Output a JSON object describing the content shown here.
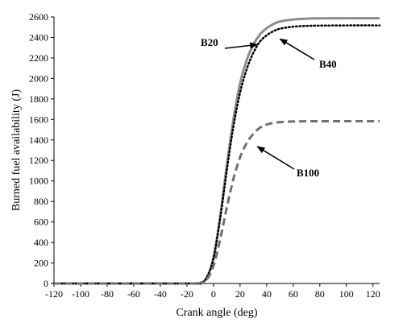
{
  "chart_data": {
    "type": "line",
    "title": "",
    "xlabel": "Crank angle (deg)",
    "ylabel": "Burned fuel availability (J)",
    "xlim": [
      -120,
      125
    ],
    "ylim": [
      0,
      2600
    ],
    "xticks": [
      -120,
      -100,
      -80,
      -60,
      -40,
      -20,
      0,
      20,
      40,
      60,
      80,
      100,
      120
    ],
    "yticks": [
      0,
      200,
      400,
      600,
      800,
      1000,
      1200,
      1400,
      1600,
      1800,
      2000,
      2200,
      2400,
      2600
    ],
    "grid": false,
    "legend": "none",
    "series": [
      {
        "name": "B20",
        "style": "solid",
        "color": "#8c8c8c",
        "x": [
          -120,
          -20,
          -10,
          -5,
          0,
          5,
          10,
          15,
          20,
          25,
          30,
          35,
          40,
          45,
          50,
          60,
          70,
          80,
          100,
          125
        ],
        "y": [
          0,
          0,
          5,
          60,
          250,
          650,
          1150,
          1600,
          1950,
          2180,
          2330,
          2430,
          2490,
          2530,
          2555,
          2575,
          2583,
          2586,
          2587,
          2587
        ]
      },
      {
        "name": "B40",
        "style": "dotted",
        "color": "#000000",
        "x": [
          -120,
          -20,
          -10,
          -5,
          0,
          5,
          10,
          15,
          20,
          25,
          30,
          35,
          40,
          45,
          50,
          60,
          70,
          80,
          100,
          125
        ],
        "y": [
          0,
          0,
          5,
          60,
          245,
          630,
          1100,
          1530,
          1860,
          2090,
          2250,
          2360,
          2420,
          2460,
          2485,
          2505,
          2512,
          2515,
          2517,
          2517
        ]
      },
      {
        "name": "B100",
        "style": "dashed",
        "color": "#707070",
        "x": [
          -120,
          -20,
          -10,
          -5,
          0,
          5,
          10,
          15,
          20,
          25,
          30,
          35,
          40,
          45,
          50,
          60,
          70,
          80,
          100,
          125
        ],
        "y": [
          0,
          0,
          3,
          40,
          170,
          430,
          740,
          1020,
          1230,
          1370,
          1460,
          1520,
          1550,
          1565,
          1574,
          1580,
          1582,
          1583,
          1583,
          1583
        ]
      }
    ],
    "annotations": [
      {
        "text": "B20",
        "arrow_to": [
          33,
          2330
        ]
      },
      {
        "text": "B40",
        "arrow_to": [
          50,
          2385
        ]
      },
      {
        "text": "B100",
        "arrow_to": [
          33,
          1335
        ]
      }
    ]
  }
}
